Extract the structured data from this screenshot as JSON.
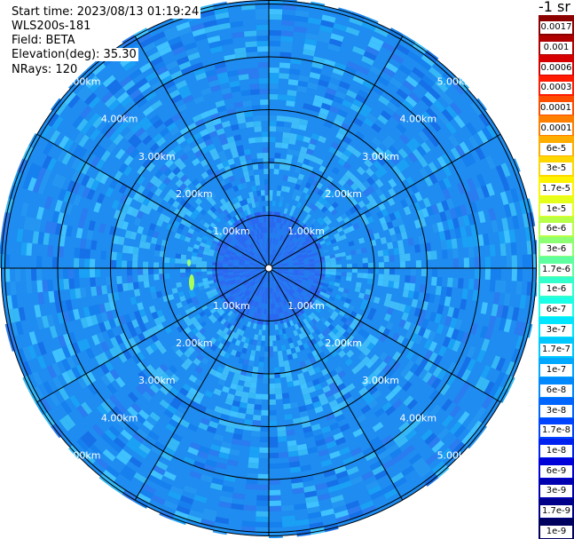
{
  "header": {
    "start_time": "Start time: 2023/08/13 01:19:24",
    "instrument": "WLS200s-181",
    "field": "Field: BETA",
    "elevation": "Elevation(deg): 35.30",
    "nrays": "NRays: 120"
  },
  "rings": {
    "labels": [
      "1.00km",
      "2.00km",
      "3.00km",
      "4.00km",
      "5.00km"
    ]
  },
  "colorbar": {
    "units_title": "-1 sr",
    "labels": [
      "0.0017",
      "0.001",
      "0.0006",
      "0.0003",
      "0.00017",
      "0.0001",
      "6e-5",
      "3e-5",
      "1.7e-5",
      "1e-5",
      "6e-6",
      "3e-6",
      "1.7e-6",
      "1e-6",
      "6e-7",
      "3e-7",
      "1.7e-7",
      "1e-7",
      "6e-8",
      "3e-8",
      "1.7e-8",
      "1e-8",
      "6e-9",
      "3e-9",
      "1.7e-9",
      "1e-9"
    ],
    "colors": [
      "#8c0000",
      "#b00000",
      "#d60000",
      "#ff1a00",
      "#ff4d00",
      "#ff7f00",
      "#ffae00",
      "#ffd700",
      "#fff400",
      "#e6ff1a",
      "#b8ff47",
      "#8cff73",
      "#5fffa0",
      "#33ffcc",
      "#1affe6",
      "#00e6ff",
      "#00c8ff",
      "#00a8ff",
      "#0088ff",
      "#0066ff",
      "#0044ff",
      "#0022f0",
      "#0000d8",
      "#0000b0",
      "#000088",
      "#00005e"
    ]
  },
  "colors": {
    "background": "#ffffff",
    "plot_base": "#1e8cf0",
    "inner_zone": "#2a6ff2",
    "grid_lines": "#000000"
  }
}
